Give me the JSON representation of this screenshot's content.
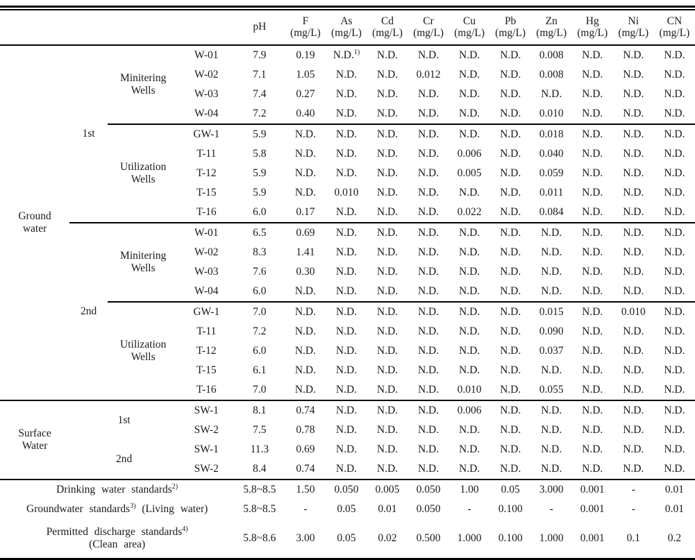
{
  "page": {
    "background": "#ffffff",
    "text_color": "#1a1a1a",
    "rule_color": "#000000"
  },
  "table": {
    "header": {
      "ph": "pH",
      "chem_columns": [
        {
          "symbol": "F",
          "unit": "(mg/L)"
        },
        {
          "symbol": "As",
          "unit": "(mg/L)"
        },
        {
          "symbol": "Cd",
          "unit": "(mg/L)"
        },
        {
          "symbol": "Cr",
          "unit": "(mg/L)"
        },
        {
          "symbol": "Cu",
          "unit": "(mg/L)"
        },
        {
          "symbol": "Pb",
          "unit": "(mg/L)"
        },
        {
          "symbol": "Zn",
          "unit": "(mg/L)"
        },
        {
          "symbol": "Hg",
          "unit": "(mg/L)"
        },
        {
          "symbol": "Ni",
          "unit": "(mg/L)"
        },
        {
          "symbol": "CN",
          "unit": "(mg/L)"
        }
      ]
    },
    "sections": [
      {
        "group": [
          "Ground",
          "water"
        ],
        "campaigns": [
          {
            "label": "1st",
            "subgroups": [
              {
                "type": [
                  "Minitering",
                  "Wells"
                ],
                "rows": [
                  {
                    "id": "W-01",
                    "values": [
                      "7.9",
                      "0.19",
                      "N.D.^1)",
                      "N.D.",
                      "N.D.",
                      "N.D.",
                      "N.D.",
                      "0.008",
                      "N.D.",
                      "N.D.",
                      "N.D."
                    ]
                  },
                  {
                    "id": "W-02",
                    "values": [
                      "7.1",
                      "1.05",
                      "N.D.",
                      "N.D.",
                      "0.012",
                      "N.D.",
                      "N.D.",
                      "0.008",
                      "N.D.",
                      "N.D.",
                      "N.D."
                    ]
                  },
                  {
                    "id": "W-03",
                    "values": [
                      "7.4",
                      "0.27",
                      "N.D.",
                      "N.D.",
                      "N.D.",
                      "N.D.",
                      "N.D.",
                      "N.D.",
                      "N.D.",
                      "N.D.",
                      "N.D."
                    ]
                  },
                  {
                    "id": "W-04",
                    "values": [
                      "7.2",
                      "0.40",
                      "N.D.",
                      "N.D.",
                      "N.D.",
                      "N.D.",
                      "N.D.",
                      "0.010",
                      "N.D.",
                      "N.D.",
                      "N.D."
                    ]
                  }
                ]
              },
              {
                "type": [
                  "Utilization",
                  "Wells"
                ],
                "rows": [
                  {
                    "id": "GW-1",
                    "values": [
                      "5.9",
                      "N.D.",
                      "N.D.",
                      "N.D.",
                      "N.D.",
                      "N.D.",
                      "N.D.",
                      "0.018",
                      "N.D.",
                      "N.D.",
                      "N.D."
                    ]
                  },
                  {
                    "id": "T-11",
                    "values": [
                      "5.8",
                      "N.D.",
                      "N.D.",
                      "N.D.",
                      "N.D.",
                      "0.006",
                      "N.D.",
                      "0.040",
                      "N.D.",
                      "N.D.",
                      "N.D."
                    ]
                  },
                  {
                    "id": "T-12",
                    "values": [
                      "5.9",
                      "N.D.",
                      "N.D.",
                      "N.D.",
                      "N.D.",
                      "0.005",
                      "N.D.",
                      "0.059",
                      "N.D.",
                      "N.D.",
                      "N.D."
                    ]
                  },
                  {
                    "id": "T-15",
                    "values": [
                      "5.9",
                      "N.D.",
                      "0.010",
                      "N.D.",
                      "N.D.",
                      "N.D.",
                      "N.D.",
                      "0.011",
                      "N.D.",
                      "N.D.",
                      "N.D."
                    ]
                  },
                  {
                    "id": "T-16",
                    "values": [
                      "6.0",
                      "0.17",
                      "N.D.",
                      "N.D.",
                      "N.D.",
                      "0.022",
                      "N.D.",
                      "0.084",
                      "N.D.",
                      "N.D.",
                      "N.D."
                    ]
                  }
                ]
              }
            ]
          },
          {
            "label": "2nd",
            "subgroups": [
              {
                "type": [
                  "Minitering",
                  "Wells"
                ],
                "rows": [
                  {
                    "id": "W-01",
                    "values": [
                      "6.5",
                      "0.69",
                      "N.D.",
                      "N.D.",
                      "N.D.",
                      "N.D.",
                      "N.D.",
                      "N.D.",
                      "N.D.",
                      "N.D.",
                      "N.D."
                    ]
                  },
                  {
                    "id": "W-02",
                    "values": [
                      "8.3",
                      "1.41",
                      "N.D.",
                      "N.D.",
                      "N.D.",
                      "N.D.",
                      "N.D.",
                      "N.D.",
                      "N.D.",
                      "N.D.",
                      "N.D."
                    ]
                  },
                  {
                    "id": "W-03",
                    "values": [
                      "7.6",
                      "0.30",
                      "N.D.",
                      "N.D.",
                      "N.D.",
                      "N.D.",
                      "N.D.",
                      "N.D.",
                      "N.D.",
                      "N.D.",
                      "N.D."
                    ]
                  },
                  {
                    "id": "W-04",
                    "values": [
                      "6.0",
                      "N.D.",
                      "N.D.",
                      "N.D.",
                      "N.D.",
                      "N.D.",
                      "N.D.",
                      "N.D.",
                      "N.D.",
                      "N.D.",
                      "N.D."
                    ]
                  }
                ]
              },
              {
                "type": [
                  "Utilization",
                  "Wells"
                ],
                "rows": [
                  {
                    "id": "GW-1",
                    "values": [
                      "7.0",
                      "N.D.",
                      "N.D.",
                      "N.D.",
                      "N.D.",
                      "N.D.",
                      "N.D.",
                      "0.015",
                      "N.D.",
                      "0.010",
                      "N.D."
                    ]
                  },
                  {
                    "id": "T-11",
                    "values": [
                      "7.2",
                      "N.D.",
                      "N.D.",
                      "N.D.",
                      "N.D.",
                      "N.D.",
                      "N.D.",
                      "0.090",
                      "N.D.",
                      "N.D.",
                      "N.D."
                    ]
                  },
                  {
                    "id": "T-12",
                    "values": [
                      "6.0",
                      "N.D.",
                      "N.D.",
                      "N.D.",
                      "N.D.",
                      "N.D.",
                      "N.D.",
                      "0.037",
                      "N.D.",
                      "N.D.",
                      "N.D."
                    ]
                  },
                  {
                    "id": "T-15",
                    "values": [
                      "6.1",
                      "N.D.",
                      "N.D.",
                      "N.D.",
                      "N.D.",
                      "N.D.",
                      "N.D.",
                      "N.D.",
                      "N.D.",
                      "N.D.",
                      "N.D."
                    ]
                  },
                  {
                    "id": "T-16",
                    "values": [
                      "7.0",
                      "N.D.",
                      "N.D.",
                      "N.D.",
                      "N.D.",
                      "0.010",
                      "N.D.",
                      "0.055",
                      "N.D.",
                      "N.D.",
                      "N.D."
                    ]
                  }
                ]
              }
            ]
          }
        ]
      },
      {
        "group": [
          "Surface",
          "Water"
        ],
        "campaigns": [
          {
            "label": "1st",
            "merged": true,
            "rows": [
              {
                "id": "SW-1",
                "values": [
                  "8.1",
                  "0.74",
                  "N.D.",
                  "N.D.",
                  "N.D.",
                  "0.006",
                  "N.D.",
                  "N.D.",
                  "N.D.",
                  "N.D.",
                  "N.D."
                ]
              },
              {
                "id": "SW-2",
                "values": [
                  "7.5",
                  "0.78",
                  "N.D.",
                  "N.D.",
                  "N.D.",
                  "N.D.",
                  "N.D.",
                  "N.D.",
                  "N.D.",
                  "N.D.",
                  "N.D."
                ]
              }
            ]
          },
          {
            "label": "2nd",
            "merged": true,
            "rows": [
              {
                "id": "SW-1",
                "values": [
                  "11.3",
                  "0.69",
                  "N.D.",
                  "N.D.",
                  "N.D.",
                  "N.D.",
                  "N.D.",
                  "N.D.",
                  "N.D.",
                  "N.D.",
                  "N.D."
                ]
              },
              {
                "id": "SW-2",
                "values": [
                  "8.4",
                  "0.74",
                  "N.D.",
                  "N.D.",
                  "N.D.",
                  "N.D.",
                  "N.D.",
                  "N.D.",
                  "N.D.",
                  "N.D.",
                  "N.D."
                ]
              }
            ]
          }
        ]
      }
    ],
    "standards": [
      {
        "label": [
          "Drinking water standards^2)"
        ],
        "values": [
          "5.8~8.5",
          "1.50",
          "0.050",
          "0.005",
          "0.050",
          "1.00",
          "0.05",
          "3.000",
          "0.001",
          "-",
          "0.01"
        ]
      },
      {
        "label": [
          "Groundwater standards^3) (Living water)"
        ],
        "values": [
          "5.8~8.5",
          "-",
          "0.05",
          "0.01",
          "0.050",
          "-",
          "0.100",
          "-",
          "0.001",
          "-",
          "0.01"
        ]
      },
      {
        "label": [
          "Permitted discharge standards^4)",
          "(Clean area)"
        ],
        "values": [
          "5.8~8.6",
          "3.00",
          "0.05",
          "0.02",
          "0.500",
          "1.000",
          "0.100",
          "1.000",
          "0.001",
          "0.1",
          "0.2"
        ]
      }
    ]
  }
}
